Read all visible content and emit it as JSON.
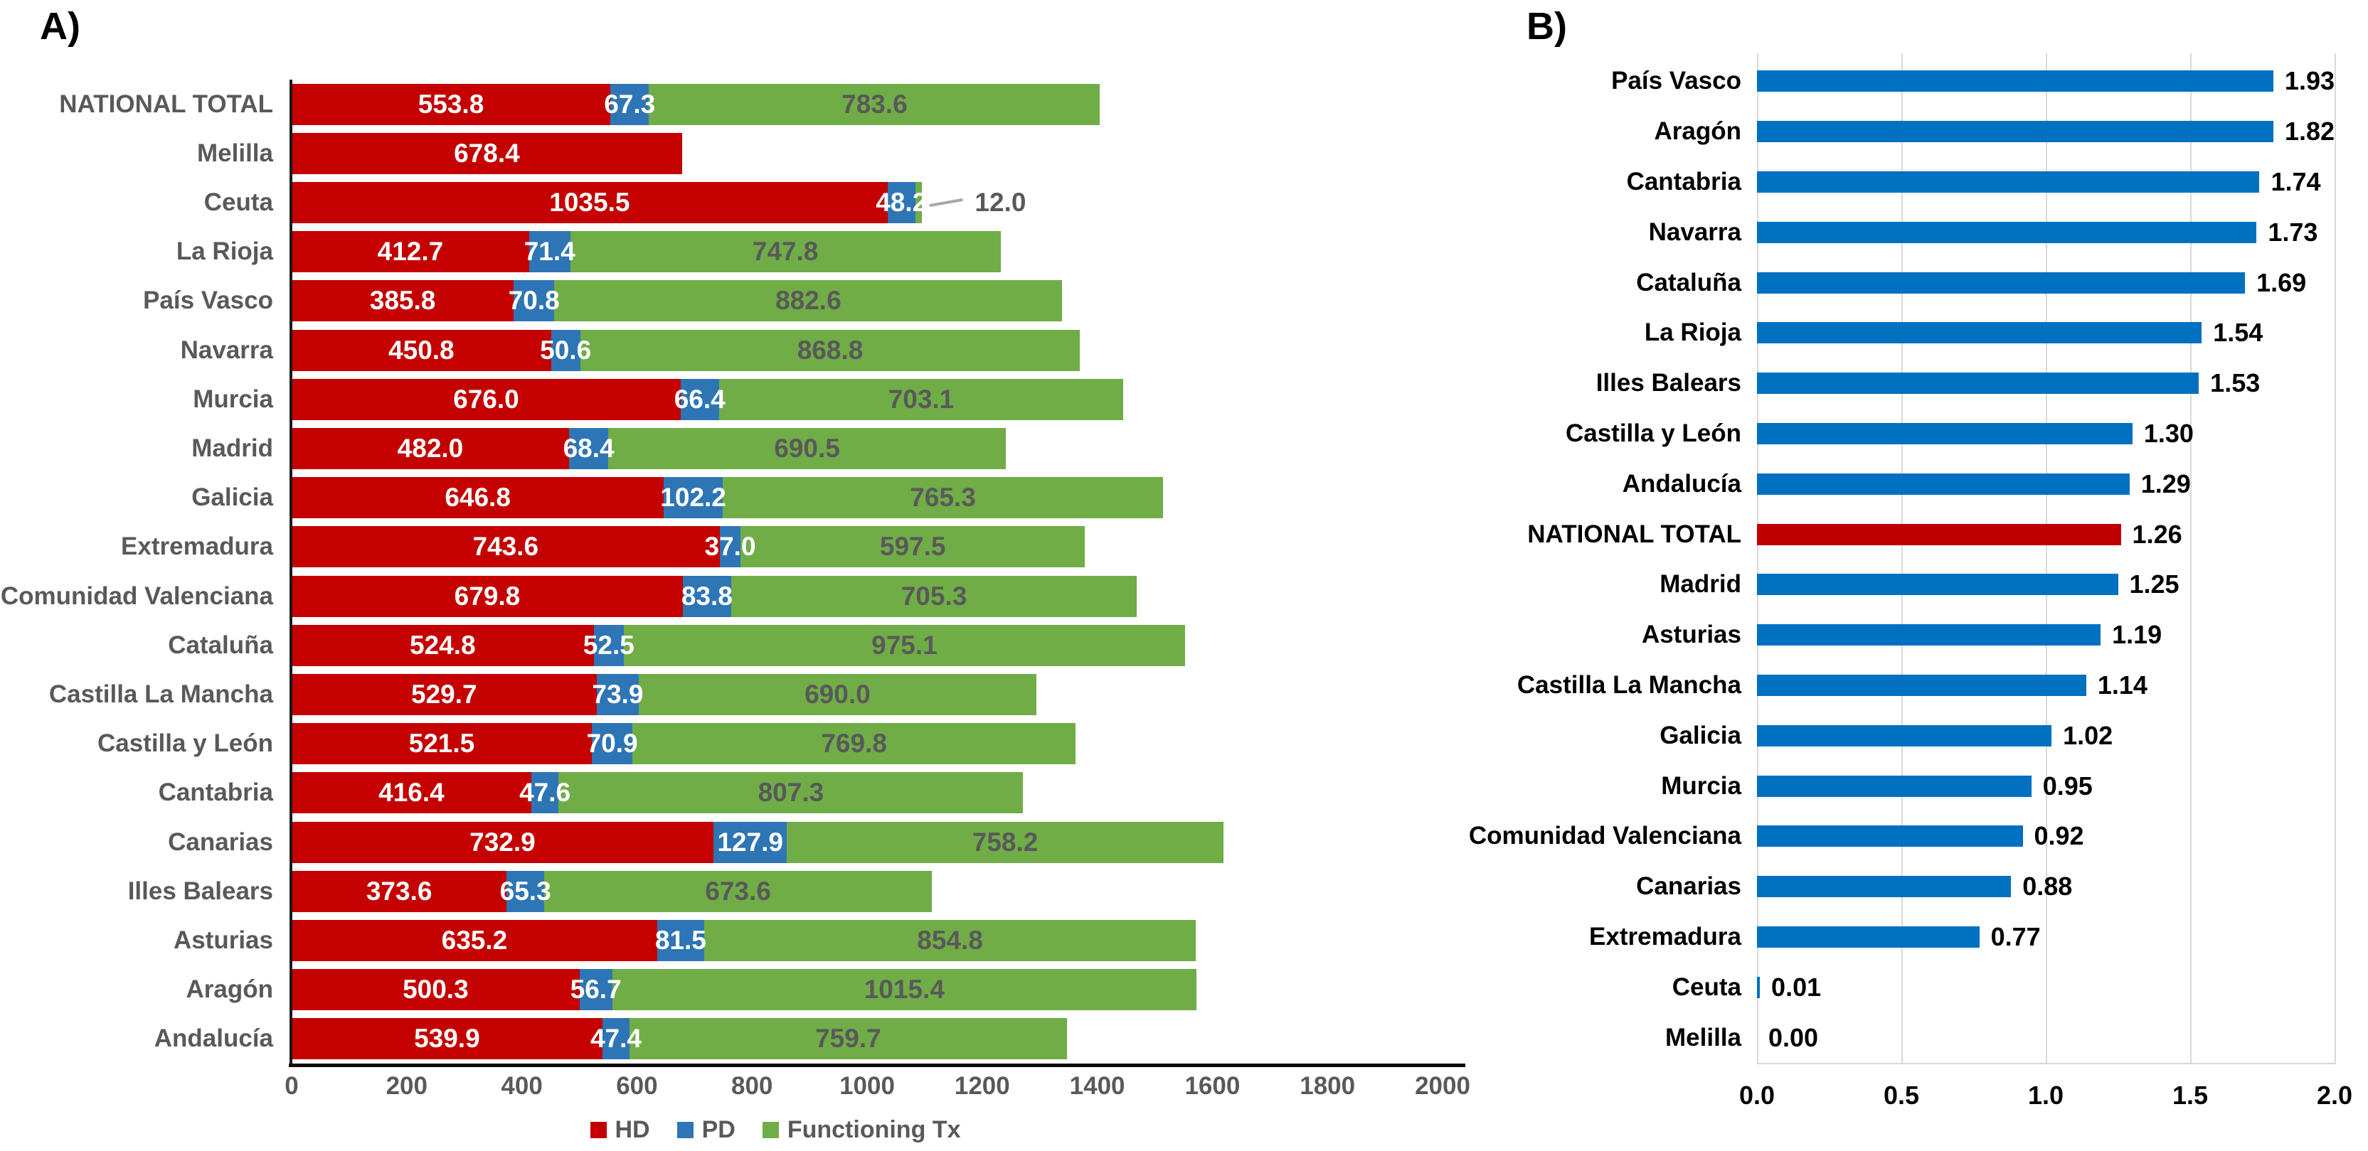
{
  "panels": {
    "a_label": "A)",
    "b_label": "B)"
  },
  "colors": {
    "hd_red": "#C40000",
    "pd_blue": "#2E75B6",
    "tx_green": "#70AD47",
    "panel_b_blue": "#0070C0",
    "panel_b_highlight_red": "#C00000",
    "gray_text": "#595959",
    "gridline_gray": "#D9D9D9"
  },
  "chart_data": [
    {
      "id": "A",
      "type": "bar",
      "orientation": "horizontal",
      "stacked": true,
      "grid": false,
      "legend_position": "bottom",
      "legend": [
        "HD",
        "PD",
        "Functioning Tx"
      ],
      "xlim": [
        0,
        2000
      ],
      "x_ticks": [
        0,
        200,
        400,
        600,
        800,
        1000,
        1200,
        1400,
        1600,
        1800,
        2000
      ],
      "categories": [
        "NATIONAL TOTAL",
        "Melilla",
        "Ceuta",
        "La Rioja",
        "País Vasco",
        "Navarra",
        "Murcia",
        "Madrid",
        "Galicia",
        "Extremadura",
        "Comunidad Valenciana",
        "Cataluña",
        "Castilla La Mancha",
        "Castilla y León",
        "Cantabria",
        "Canarias",
        "Illes Balears",
        "Asturias",
        "Aragón",
        "Andalucía"
      ],
      "series": [
        {
          "name": "HD",
          "values": [
            553.8,
            678.4,
            1035.5,
            412.7,
            385.8,
            450.8,
            676.0,
            482.0,
            646.8,
            743.6,
            679.8,
            524.8,
            529.7,
            521.5,
            416.4,
            732.9,
            373.6,
            635.2,
            500.3,
            539.9
          ]
        },
        {
          "name": "PD",
          "values": [
            67.3,
            null,
            48.2,
            71.4,
            70.8,
            50.6,
            66.4,
            68.4,
            102.2,
            37.0,
            83.8,
            52.5,
            73.9,
            70.9,
            47.6,
            127.9,
            65.3,
            81.5,
            56.7,
            47.4
          ]
        },
        {
          "name": "Functioning Tx",
          "values": [
            783.6,
            null,
            12.0,
            747.8,
            882.6,
            868.8,
            703.1,
            690.5,
            765.3,
            597.5,
            705.3,
            975.1,
            690.0,
            769.8,
            807.3,
            758.2,
            673.6,
            854.8,
            1015.4,
            759.7
          ]
        }
      ],
      "rows": [
        {
          "label": "NATIONAL TOTAL",
          "hd": "553.8",
          "pd": "67.3",
          "tx": "783.6"
        },
        {
          "label": "Melilla",
          "hd": "678.4",
          "pd": null,
          "tx": null
        },
        {
          "label": "Ceuta",
          "hd": "1035.5",
          "pd": "48.2",
          "tx": "12.0",
          "callout": true
        },
        {
          "label": "La Rioja",
          "hd": "412.7",
          "pd": "71.4",
          "tx": "747.8"
        },
        {
          "label": "País Vasco",
          "hd": "385.8",
          "pd": "70.8",
          "tx": "882.6"
        },
        {
          "label": "Navarra",
          "hd": "450.8",
          "pd": "50.6",
          "tx": "868.8"
        },
        {
          "label": "Murcia",
          "hd": "676.0",
          "pd": "66.4",
          "tx": "703.1"
        },
        {
          "label": "Madrid",
          "hd": "482.0",
          "pd": "68.4",
          "tx": "690.5"
        },
        {
          "label": "Galicia",
          "hd": "646.8",
          "pd": "102.2",
          "tx": "765.3"
        },
        {
          "label": "Extremadura",
          "hd": "743.6",
          "pd": "37.0",
          "tx": "597.5"
        },
        {
          "label": "Comunidad Valenciana",
          "hd": "679.8",
          "pd": "83.8",
          "tx": "705.3"
        },
        {
          "label": "Cataluña",
          "hd": "524.8",
          "pd": "52.5",
          "tx": "975.1"
        },
        {
          "label": "Castilla La Mancha",
          "hd": "529.7",
          "pd": "73.9",
          "tx": "690.0"
        },
        {
          "label": "Castilla y León",
          "hd": "521.5",
          "pd": "70.9",
          "tx": "769.8"
        },
        {
          "label": "Cantabria",
          "hd": "416.4",
          "pd": "47.6",
          "tx": "807.3"
        },
        {
          "label": "Canarias",
          "hd": "732.9",
          "pd": "127.9",
          "tx": "758.2"
        },
        {
          "label": "Illes Balears",
          "hd": "373.6",
          "pd": "65.3",
          "tx": "673.6"
        },
        {
          "label": "Asturias",
          "hd": "635.2",
          "pd": "81.5",
          "tx": "854.8"
        },
        {
          "label": "Aragón",
          "hd": "500.3",
          "pd": "56.7",
          "tx": "1015.4"
        },
        {
          "label": "Andalucía",
          "hd": "539.9",
          "pd": "47.4",
          "tx": "759.7"
        }
      ]
    },
    {
      "id": "B",
      "type": "bar",
      "orientation": "horizontal",
      "stacked": false,
      "grid": true,
      "legend_position": "none",
      "xlim": [
        0.0,
        2.0
      ],
      "x_ticks": [
        "0.0",
        "0.5",
        "1.0",
        "1.5",
        "2.0"
      ],
      "categories": [
        "País Vasco",
        "Aragón",
        "Cantabria",
        "Navarra",
        "Cataluña",
        "La Rioja",
        "Illes Balears",
        "Castilla y León",
        "Andalucía",
        "NATIONAL TOTAL",
        "Madrid",
        "Asturias",
        "Castilla La Mancha",
        "Galicia",
        "Murcia",
        "Comunidad Valenciana",
        "Canarias",
        "Extremadura",
        "Ceuta",
        "Melilla"
      ],
      "values": [
        1.93,
        1.82,
        1.74,
        1.73,
        1.69,
        1.54,
        1.53,
        1.3,
        1.29,
        1.26,
        1.25,
        1.19,
        1.14,
        1.02,
        0.95,
        0.92,
        0.88,
        0.77,
        0.01,
        0.0
      ],
      "rows": [
        {
          "label": "País Vasco",
          "value": "1.93"
        },
        {
          "label": "Aragón",
          "value": "1.82"
        },
        {
          "label": "Cantabria",
          "value": "1.74"
        },
        {
          "label": "Navarra",
          "value": "1.73"
        },
        {
          "label": "Cataluña",
          "value": "1.69"
        },
        {
          "label": "La Rioja",
          "value": "1.54"
        },
        {
          "label": "Illes Balears",
          "value": "1.53"
        },
        {
          "label": "Castilla y León",
          "value": "1.30"
        },
        {
          "label": "Andalucía",
          "value": "1.29"
        },
        {
          "label": "NATIONAL TOTAL",
          "value": "1.26",
          "highlight": true
        },
        {
          "label": "Madrid",
          "value": "1.25"
        },
        {
          "label": "Asturias",
          "value": "1.19"
        },
        {
          "label": "Castilla La Mancha",
          "value": "1.14"
        },
        {
          "label": "Galicia",
          "value": "1.02"
        },
        {
          "label": "Murcia",
          "value": "0.95"
        },
        {
          "label": "Comunidad Valenciana",
          "value": "0.92"
        },
        {
          "label": "Canarias",
          "value": "0.88"
        },
        {
          "label": "Extremadura",
          "value": "0.77"
        },
        {
          "label": "Ceuta",
          "value": "0.01"
        },
        {
          "label": "Melilla",
          "value": "0.00"
        }
      ]
    }
  ]
}
